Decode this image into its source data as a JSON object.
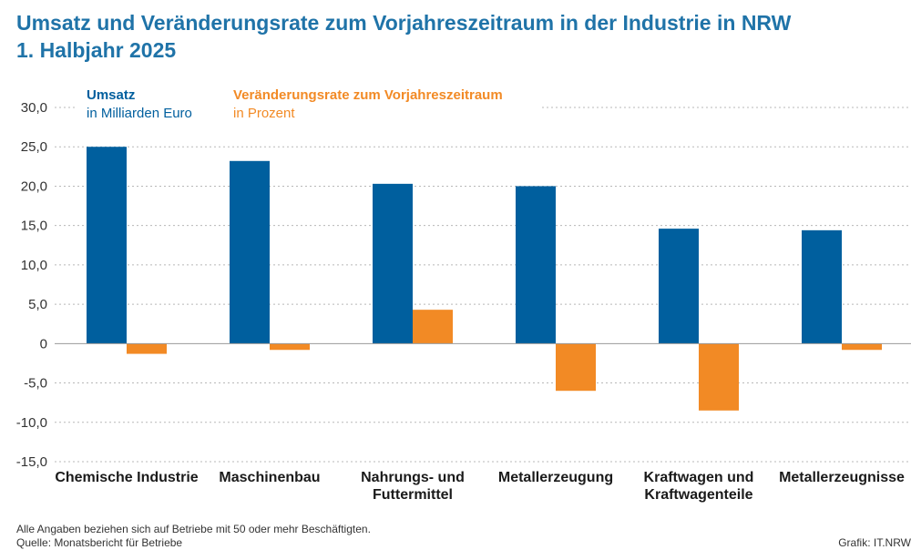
{
  "title_line1": "Umsatz und Veränderungsrate zum Vorjahreszeitraum in der Industrie in NRW",
  "title_line2": "1. Halbjahr 2025",
  "footnote_line1": "Alle Angaben beziehen sich auf Betriebe mit 50 oder mehr Beschäftigten.",
  "footnote_line2": "Quelle: Monatsbericht für Betriebe",
  "credit": "Grafik: IT.NRW",
  "chart_data": {
    "type": "bar",
    "categories": [
      [
        "Chemische Industrie"
      ],
      [
        "Maschinenbau"
      ],
      [
        "Nahrungs- und",
        "Futtermittel"
      ],
      [
        "Metallerzeugung"
      ],
      [
        "Kraftwagen und",
        "Kraftwagenteile"
      ],
      [
        "Metallerzeugnisse"
      ]
    ],
    "series": [
      {
        "name": "Umsatz",
        "unit": "in Milliarden Euro",
        "color": "#005f9e",
        "values": [
          25.0,
          23.2,
          20.3,
          20.0,
          14.6,
          14.4
        ]
      },
      {
        "name": "Veränderungsrate zum Vorjahreszeitraum",
        "unit": "in Prozent",
        "color": "#f28a25",
        "values": [
          -1.3,
          -0.8,
          4.3,
          -6.0,
          -8.5,
          -0.8
        ]
      }
    ],
    "ylim": [
      -15,
      30
    ],
    "yticks": [
      "30,0",
      "25,0",
      "20,0",
      "15,0",
      "10,0",
      "5,0",
      "0",
      "-5,0",
      "-10,0",
      "-15,0"
    ],
    "ytick_values": [
      30,
      25,
      20,
      15,
      10,
      5,
      0,
      -5,
      -10,
      -15
    ],
    "grid": true,
    "legend_position": "top-left"
  }
}
